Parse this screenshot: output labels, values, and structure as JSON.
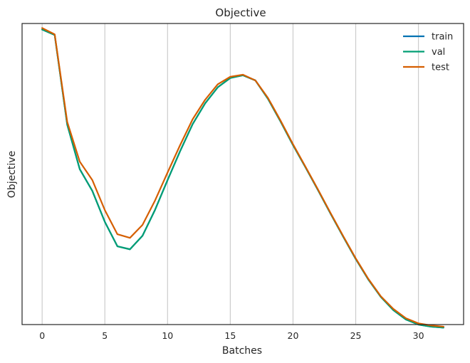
{
  "chart_data": {
    "type": "line",
    "title": "Objective",
    "xlabel": "Batches",
    "ylabel": "Objective",
    "xlim": [
      -1.6,
      33.6
    ],
    "ylim": [
      0,
      1
    ],
    "x_ticks": [
      0,
      5,
      10,
      15,
      20,
      25,
      30
    ],
    "y_ticks_shown": false,
    "grid": "vertical",
    "legend_position": "top-right",
    "x": [
      0,
      1,
      2,
      3,
      4,
      5,
      6,
      7,
      8,
      9,
      10,
      11,
      12,
      13,
      14,
      15,
      16,
      17,
      18,
      19,
      20,
      21,
      22,
      23,
      24,
      25,
      26,
      27,
      28,
      29,
      30,
      31,
      32
    ],
    "series": [
      {
        "name": "train",
        "color": "#0072B2",
        "values": [
          0.98,
          0.962,
          0.664,
          0.516,
          0.444,
          0.341,
          0.26,
          0.25,
          0.295,
          0.381,
          0.48,
          0.576,
          0.666,
          0.735,
          0.788,
          0.819,
          0.828,
          0.811,
          0.75,
          0.675,
          0.596,
          0.522,
          0.446,
          0.368,
          0.292,
          0.218,
          0.15,
          0.092,
          0.048,
          0.017,
          0.0,
          -0.007,
          -0.01
        ]
      },
      {
        "name": "val",
        "color": "#009E73",
        "values": [
          0.98,
          0.962,
          0.664,
          0.516,
          0.444,
          0.341,
          0.26,
          0.25,
          0.295,
          0.381,
          0.48,
          0.576,
          0.666,
          0.735,
          0.788,
          0.819,
          0.828,
          0.811,
          0.75,
          0.675,
          0.596,
          0.522,
          0.446,
          0.368,
          0.292,
          0.218,
          0.15,
          0.092,
          0.048,
          0.017,
          0.0,
          -0.007,
          -0.01
        ]
      },
      {
        "name": "test",
        "color": "#D55E00",
        "values": [
          0.985,
          0.964,
          0.673,
          0.541,
          0.48,
          0.38,
          0.3,
          0.288,
          0.331,
          0.412,
          0.505,
          0.596,
          0.682,
          0.747,
          0.798,
          0.823,
          0.83,
          0.811,
          0.753,
          0.678,
          0.599,
          0.524,
          0.448,
          0.37,
          0.294,
          0.22,
          0.152,
          0.094,
          0.052,
          0.021,
          0.004,
          -0.003,
          -0.007
        ]
      }
    ]
  }
}
